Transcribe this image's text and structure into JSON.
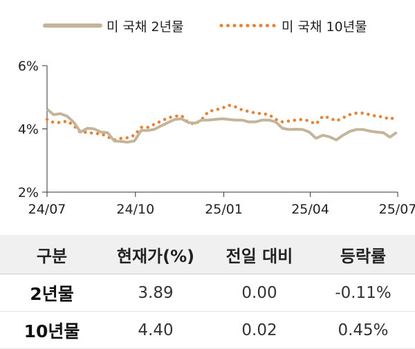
{
  "chart_data": {
    "type": "line",
    "x_ticks": [
      "24/07",
      "24/10",
      "25/01",
      "25/04",
      "25/07"
    ],
    "y_ticks": [
      "6%",
      "4%",
      "2%"
    ],
    "ylim": [
      2,
      6
    ],
    "x": [
      "2024-07-01",
      "2024-07-08",
      "2024-07-15",
      "2024-07-22",
      "2024-07-29",
      "2024-08-05",
      "2024-08-12",
      "2024-08-19",
      "2024-08-26",
      "2024-09-02",
      "2024-09-09",
      "2024-09-16",
      "2024-09-23",
      "2024-09-30",
      "2024-10-07",
      "2024-10-14",
      "2024-10-21",
      "2024-10-28",
      "2024-11-04",
      "2024-11-11",
      "2024-11-18",
      "2024-11-25",
      "2024-12-02",
      "2024-12-09",
      "2024-12-16",
      "2024-12-23",
      "2024-12-30",
      "2025-01-06",
      "2025-01-13",
      "2025-01-20",
      "2025-01-27",
      "2025-02-03",
      "2025-02-10",
      "2025-02-17",
      "2025-02-24",
      "2025-03-03",
      "2025-03-10",
      "2025-03-17",
      "2025-03-24",
      "2025-03-31",
      "2025-04-07",
      "2025-04-14",
      "2025-04-21",
      "2025-04-28",
      "2025-05-05",
      "2025-05-12",
      "2025-05-19",
      "2025-05-26",
      "2025-06-02",
      "2025-06-09",
      "2025-06-16",
      "2025-06-23",
      "2025-06-30"
    ],
    "series": [
      {
        "name": "미 국채 2년물",
        "style": "solid",
        "color": "#c4b49a",
        "values": [
          4.62,
          4.45,
          4.48,
          4.4,
          4.2,
          3.9,
          4.02,
          4.0,
          3.9,
          3.88,
          3.62,
          3.6,
          3.58,
          3.62,
          3.95,
          3.95,
          3.99,
          4.1,
          4.2,
          4.3,
          4.32,
          4.2,
          4.18,
          4.28,
          4.28,
          4.3,
          4.32,
          4.3,
          4.28,
          4.28,
          4.22,
          4.22,
          4.28,
          4.28,
          4.22,
          4.02,
          3.98,
          3.99,
          3.98,
          3.9,
          3.7,
          3.8,
          3.75,
          3.65,
          3.8,
          3.92,
          3.98,
          3.98,
          3.93,
          3.9,
          3.88,
          3.74,
          3.89
        ]
      },
      {
        "name": "미 국채 10년물",
        "style": "dotted",
        "color": "#ee7f2d",
        "values": [
          4.3,
          4.2,
          4.2,
          4.25,
          4.1,
          3.88,
          3.9,
          3.85,
          3.85,
          3.75,
          3.65,
          3.7,
          3.72,
          3.8,
          4.05,
          4.05,
          4.15,
          4.25,
          4.35,
          4.4,
          4.42,
          4.2,
          4.15,
          4.3,
          4.55,
          4.6,
          4.65,
          4.75,
          4.7,
          4.6,
          4.55,
          4.5,
          4.48,
          4.45,
          4.3,
          4.22,
          4.25,
          4.28,
          4.3,
          4.25,
          4.15,
          4.4,
          4.35,
          4.25,
          4.35,
          4.45,
          4.5,
          4.5,
          4.45,
          4.4,
          4.38,
          4.3,
          4.4
        ]
      }
    ]
  },
  "table": {
    "headers": [
      "구분",
      "현재가(%)",
      "전일 대비",
      "등락률"
    ],
    "rows": [
      {
        "label": "2년물",
        "price": "3.89",
        "change": "0.00",
        "rate": "-0.11%"
      },
      {
        "label": "10년물",
        "price": "4.40",
        "change": "0.02",
        "rate": "0.45%"
      }
    ]
  }
}
